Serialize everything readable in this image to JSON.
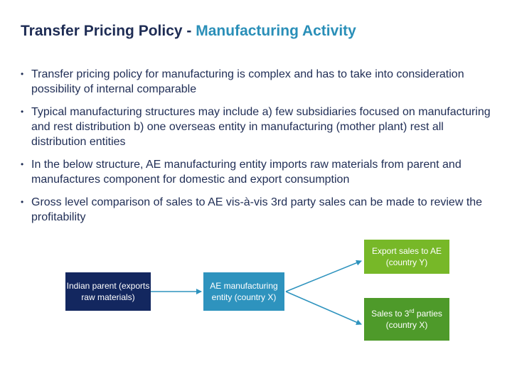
{
  "slide": {
    "title_main": "Transfer Pricing Policy - ",
    "title_accent": "Manufacturing Activity",
    "bullets": [
      "Transfer pricing policy for manufacturing is complex and has to take into consideration possibility of internal comparable",
      "Typical manufacturing structures may include a) few subsidiaries focused on manufacturing and rest distribution b) one overseas entity in manufacturing (mother plant) rest all distribution entities",
      "In the below structure, AE manufacturing entity imports raw materials from parent and manufactures component for domestic and export consumption",
      "Gross level comparison of sales to AE vis-à-vis 3rd party sales can be made to review the profitability"
    ]
  },
  "diagram": {
    "parent": "Indian parent (exports raw materials)",
    "ae": "AE manufacturing entity (country X)",
    "export": "Export sales to AE (country Y)",
    "sales_prefix": "Sales to 3",
    "sales_sup": "rd",
    "sales_suffix": " parties (country X)"
  },
  "colors": {
    "title": "#1f2d55",
    "accent": "#2a8fb8",
    "parent_box": "#13275f",
    "ae_box": "#2e93be",
    "export_box": "#77b828",
    "sales_box": "#4e9a2a",
    "arrow": "#2e93be"
  }
}
